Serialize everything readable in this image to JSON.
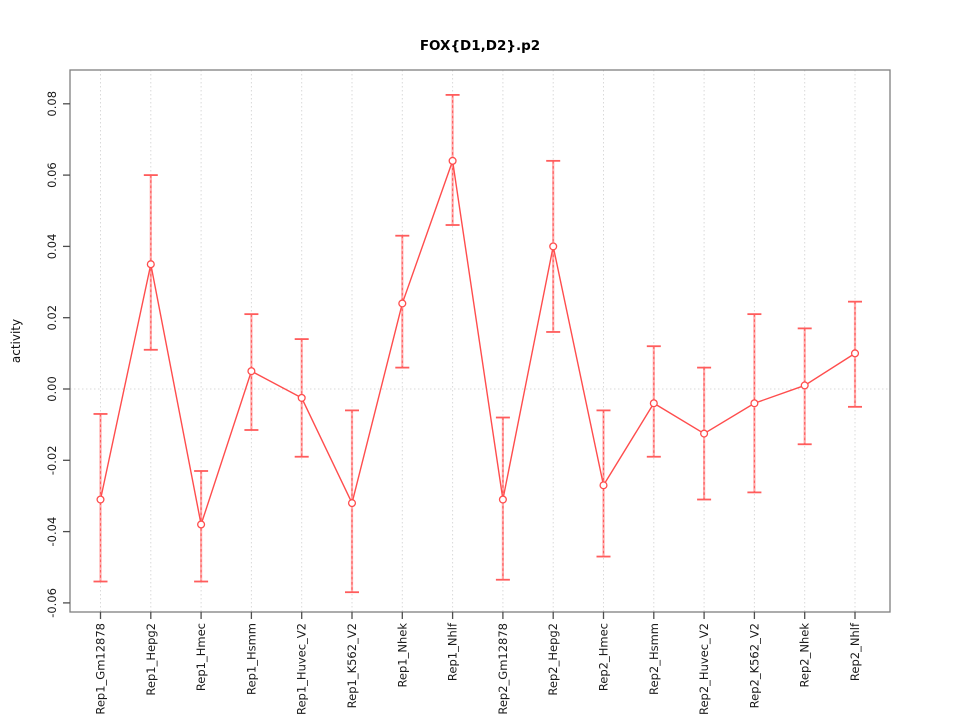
{
  "chart_data": {
    "type": "line",
    "title": "FOX{D1,D2}.p2",
    "ylabel": "activity",
    "xlabel": "",
    "ylim": [
      -0.06,
      0.08
    ],
    "ytick_step": 0.02,
    "ytick_labels": [
      "-0.06",
      "-0.04",
      "-0.02",
      "0.00",
      "0.02",
      "0.04",
      "0.06",
      "0.08"
    ],
    "grid": "dotted vertical gridline at every category; dotted horizontal gridline at y=0 only",
    "legend_position": "none",
    "marker": "open-circle",
    "categories": [
      "Rep1_Gm12878",
      "Rep1_Hepg2",
      "Rep1_Hmec",
      "Rep1_Hsmm",
      "Rep1_Huvec_V2",
      "Rep1_K562_V2",
      "Rep1_Nhek",
      "Rep1_Nhlf",
      "Rep2_Gm12878",
      "Rep2_Hepg2",
      "Rep2_Hmec",
      "Rep2_Hsmm",
      "Rep2_Huvec_V2",
      "Rep2_K562_V2",
      "Rep2_Nhek",
      "Rep2_Nhlf"
    ],
    "series": [
      {
        "name": "activity",
        "values": [
          -0.031,
          0.035,
          -0.038,
          0.005,
          -0.0025,
          -0.032,
          0.024,
          0.064,
          -0.031,
          0.04,
          -0.027,
          -0.004,
          -0.0125,
          -0.004,
          0.001,
          0.01
        ],
        "err_low": [
          -0.054,
          0.011,
          -0.054,
          -0.0115,
          -0.019,
          -0.057,
          0.006,
          0.046,
          -0.0535,
          0.016,
          -0.047,
          -0.019,
          -0.031,
          -0.029,
          -0.0155,
          -0.005
        ],
        "err_high": [
          -0.007,
          0.06,
          -0.023,
          0.021,
          0.014,
          -0.006,
          0.043,
          0.0825,
          -0.008,
          0.064,
          -0.006,
          0.012,
          0.006,
          0.021,
          0.017,
          0.0245
        ]
      }
    ],
    "colors": {
      "line": "#ff4d4d",
      "marker": "#ff4d4d",
      "error_line": "#ffabab",
      "error_dash": "#ff5c5c",
      "error_cap": "#ff5c5c",
      "grid": "#d9d9d9",
      "axis": "#7f7f7f",
      "tick": "#4d4d4d",
      "text": "#1a1a1a"
    }
  }
}
